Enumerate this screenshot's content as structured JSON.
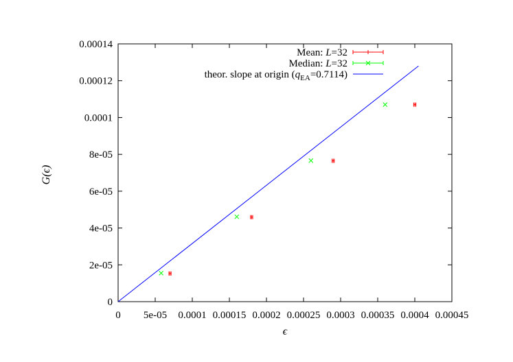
{
  "chart_data": {
    "type": "scatter",
    "title": "",
    "xlabel": "ϵ",
    "ylabel": "G(ϵ)",
    "xlim": [
      0,
      0.00045
    ],
    "ylim": [
      0,
      0.00014
    ],
    "x_ticks": [
      "0",
      "5e-05",
      "0.0001",
      "0.00015",
      "0.0002",
      "0.00025",
      "0.0003",
      "0.00035",
      "0.0004",
      "0.00045"
    ],
    "y_ticks": [
      "0",
      "2e-05",
      "4e-05",
      "6e-05",
      "8e-05",
      "0.0001",
      "0.00012",
      "0.00014"
    ],
    "grid": false,
    "legend_position": "top-right",
    "series": [
      {
        "name": "Mean: L=32",
        "legend_prefix": "Mean: ",
        "legend_var": "L",
        "legend_suffix": "=32",
        "style": "errorbar-x",
        "color": "#ff0000",
        "points": [
          {
            "x": 7e-05,
            "y": 1.53e-05,
            "xerr": 1.5e-06
          },
          {
            "x": 0.00018,
            "y": 4.59e-05,
            "xerr": 1.5e-06
          },
          {
            "x": 0.00029,
            "y": 7.65e-05,
            "xerr": 1.5e-06
          },
          {
            "x": 0.0004,
            "y": 0.000107,
            "xerr": 1.5e-06
          }
        ]
      },
      {
        "name": "Median: L=32",
        "legend_prefix": "Median: ",
        "legend_var": "L",
        "legend_suffix": "=32",
        "style": "cross",
        "color": "#00ff00",
        "points": [
          {
            "x": 5.8e-05,
            "y": 1.55e-05
          },
          {
            "x": 0.00016,
            "y": 4.61e-05
          },
          {
            "x": 0.00026,
            "y": 7.66e-05
          },
          {
            "x": 0.00036,
            "y": 0.000107
          }
        ]
      },
      {
        "name": "theor. slope at origin (qEA=0.7114)",
        "legend_prefix": "theor. slope at origin (",
        "legend_var": "q",
        "legend_sub": "EA",
        "legend_suffix": "=0.7114)",
        "style": "line",
        "color": "#0000ff",
        "slope_label_value": 0.7114,
        "x": [
          0,
          0.000405
        ],
        "y": [
          0,
          0.000128
        ]
      }
    ]
  }
}
